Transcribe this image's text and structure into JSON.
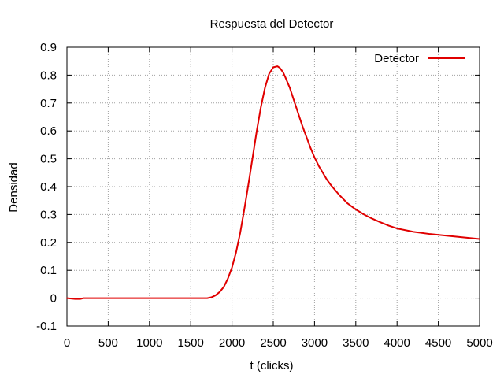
{
  "chart_data": {
    "type": "line",
    "title": "Respuesta del Detector",
    "xlabel": "t (clicks)",
    "ylabel": "Densidad",
    "xlim": [
      0,
      5000
    ],
    "ylim": [
      -0.1,
      0.9
    ],
    "xticks": [
      0,
      500,
      1000,
      1500,
      2000,
      2500,
      3000,
      3500,
      4000,
      4500,
      5000
    ],
    "xtick_labels": [
      "0",
      "500",
      "1000",
      "1500",
      "2000",
      "2500",
      "3000",
      "3500",
      "4000",
      "4500",
      "5000"
    ],
    "yticks": [
      -0.1,
      0,
      0.1,
      0.2,
      0.3,
      0.4,
      0.5,
      0.6,
      0.7,
      0.8,
      0.9
    ],
    "ytick_labels": [
      "-0.1",
      "0",
      "0.1",
      "0.2",
      "0.3",
      "0.4",
      "0.5",
      "0.6",
      "0.7",
      "0.8",
      "0.9"
    ],
    "grid": true,
    "legend_position": "top-right",
    "series": [
      {
        "name": "Detector",
        "color": "#e00000",
        "x": [
          0,
          100,
          160,
          200,
          500,
          1000,
          1500,
          1700,
          1750,
          1800,
          1850,
          1900,
          1950,
          2000,
          2050,
          2100,
          2150,
          2200,
          2250,
          2300,
          2350,
          2400,
          2450,
          2500,
          2550,
          2580,
          2620,
          2650,
          2700,
          2750,
          2800,
          2850,
          2900,
          2950,
          3000,
          3050,
          3100,
          3150,
          3200,
          3300,
          3400,
          3500,
          3600,
          3700,
          3800,
          3900,
          4000,
          4200,
          4400,
          4600,
          4800,
          5000
        ],
        "y": [
          0.0,
          -0.003,
          -0.003,
          0.0,
          0.0,
          0.0,
          0.0,
          0.0,
          0.003,
          0.01,
          0.022,
          0.04,
          0.07,
          0.11,
          0.165,
          0.235,
          0.32,
          0.41,
          0.505,
          0.6,
          0.685,
          0.755,
          0.805,
          0.828,
          0.832,
          0.826,
          0.81,
          0.79,
          0.755,
          0.71,
          0.665,
          0.62,
          0.58,
          0.54,
          0.505,
          0.475,
          0.45,
          0.425,
          0.405,
          0.37,
          0.34,
          0.318,
          0.3,
          0.285,
          0.272,
          0.26,
          0.25,
          0.238,
          0.23,
          0.224,
          0.218,
          0.212
        ]
      }
    ]
  }
}
